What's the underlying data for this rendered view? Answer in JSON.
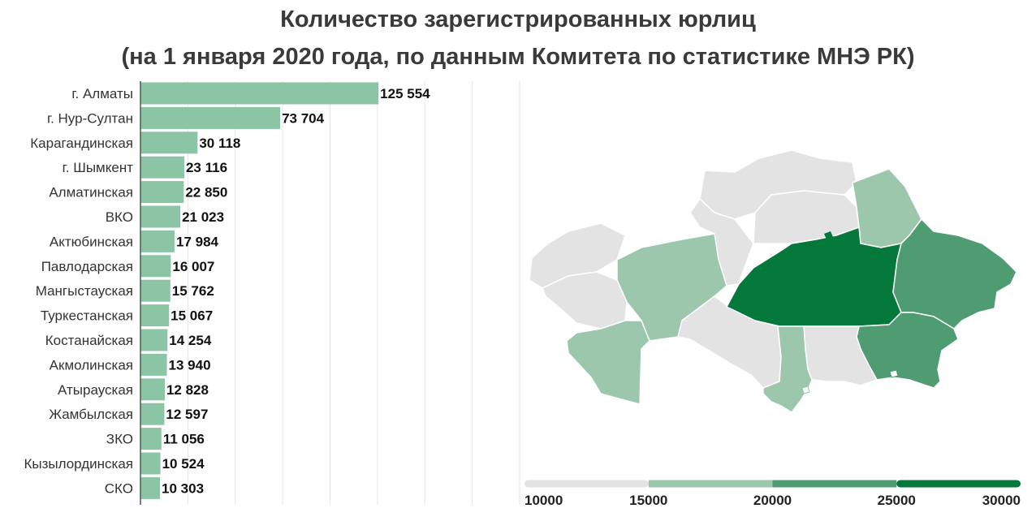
{
  "title_line1": "Количество зарегистрированных юрлиц",
  "title_line2": "(на 1 января 2020 года, по данным Комитета по статистике МНЭ РК)",
  "chart_data": [
    {
      "type": "bar",
      "orientation": "horizontal",
      "categories": [
        "г. Алматы",
        "г. Нур-Султан",
        "Карагандинская",
        "г. Шымкент",
        "Алматинская",
        "ВКО",
        "Актюбинская",
        "Павлодарская",
        "Мангыстауская",
        "Туркестанская",
        "Костанайская",
        "Акмолинская",
        "Атырауская",
        "Жамбылская",
        "ЗКО",
        "Кызылординская",
        "СКО"
      ],
      "values": [
        125554,
        73704,
        30118,
        23116,
        22850,
        21023,
        17984,
        16007,
        15762,
        15067,
        14254,
        13940,
        12828,
        12597,
        11056,
        10524,
        10303
      ],
      "value_labels": [
        "125 554",
        "73 704",
        "30 118",
        "23 116",
        "22 850",
        "21 023",
        "17 984",
        "16 007",
        "15 762",
        "15 067",
        "14 254",
        "13 940",
        "12 828",
        "12 597",
        "11 056",
        "10 524",
        "10 303"
      ],
      "xlim": [
        0,
        200000
      ],
      "grid": true,
      "bar_color": "#8cc4a6"
    },
    {
      "type": "choropleth_legend",
      "ticks": [
        "10000",
        "15000",
        "20000",
        "25000",
        "30000"
      ],
      "bins": [
        {
          "from": 10000,
          "to": 15000,
          "color": "#e3e3e3"
        },
        {
          "from": 15000,
          "to": 20000,
          "color": "#9cc7ad"
        },
        {
          "from": 20000,
          "to": 25000,
          "color": "#4f9c72"
        },
        {
          "from": 25000,
          "to": 30000,
          "color": "#04773b"
        }
      ]
    }
  ]
}
